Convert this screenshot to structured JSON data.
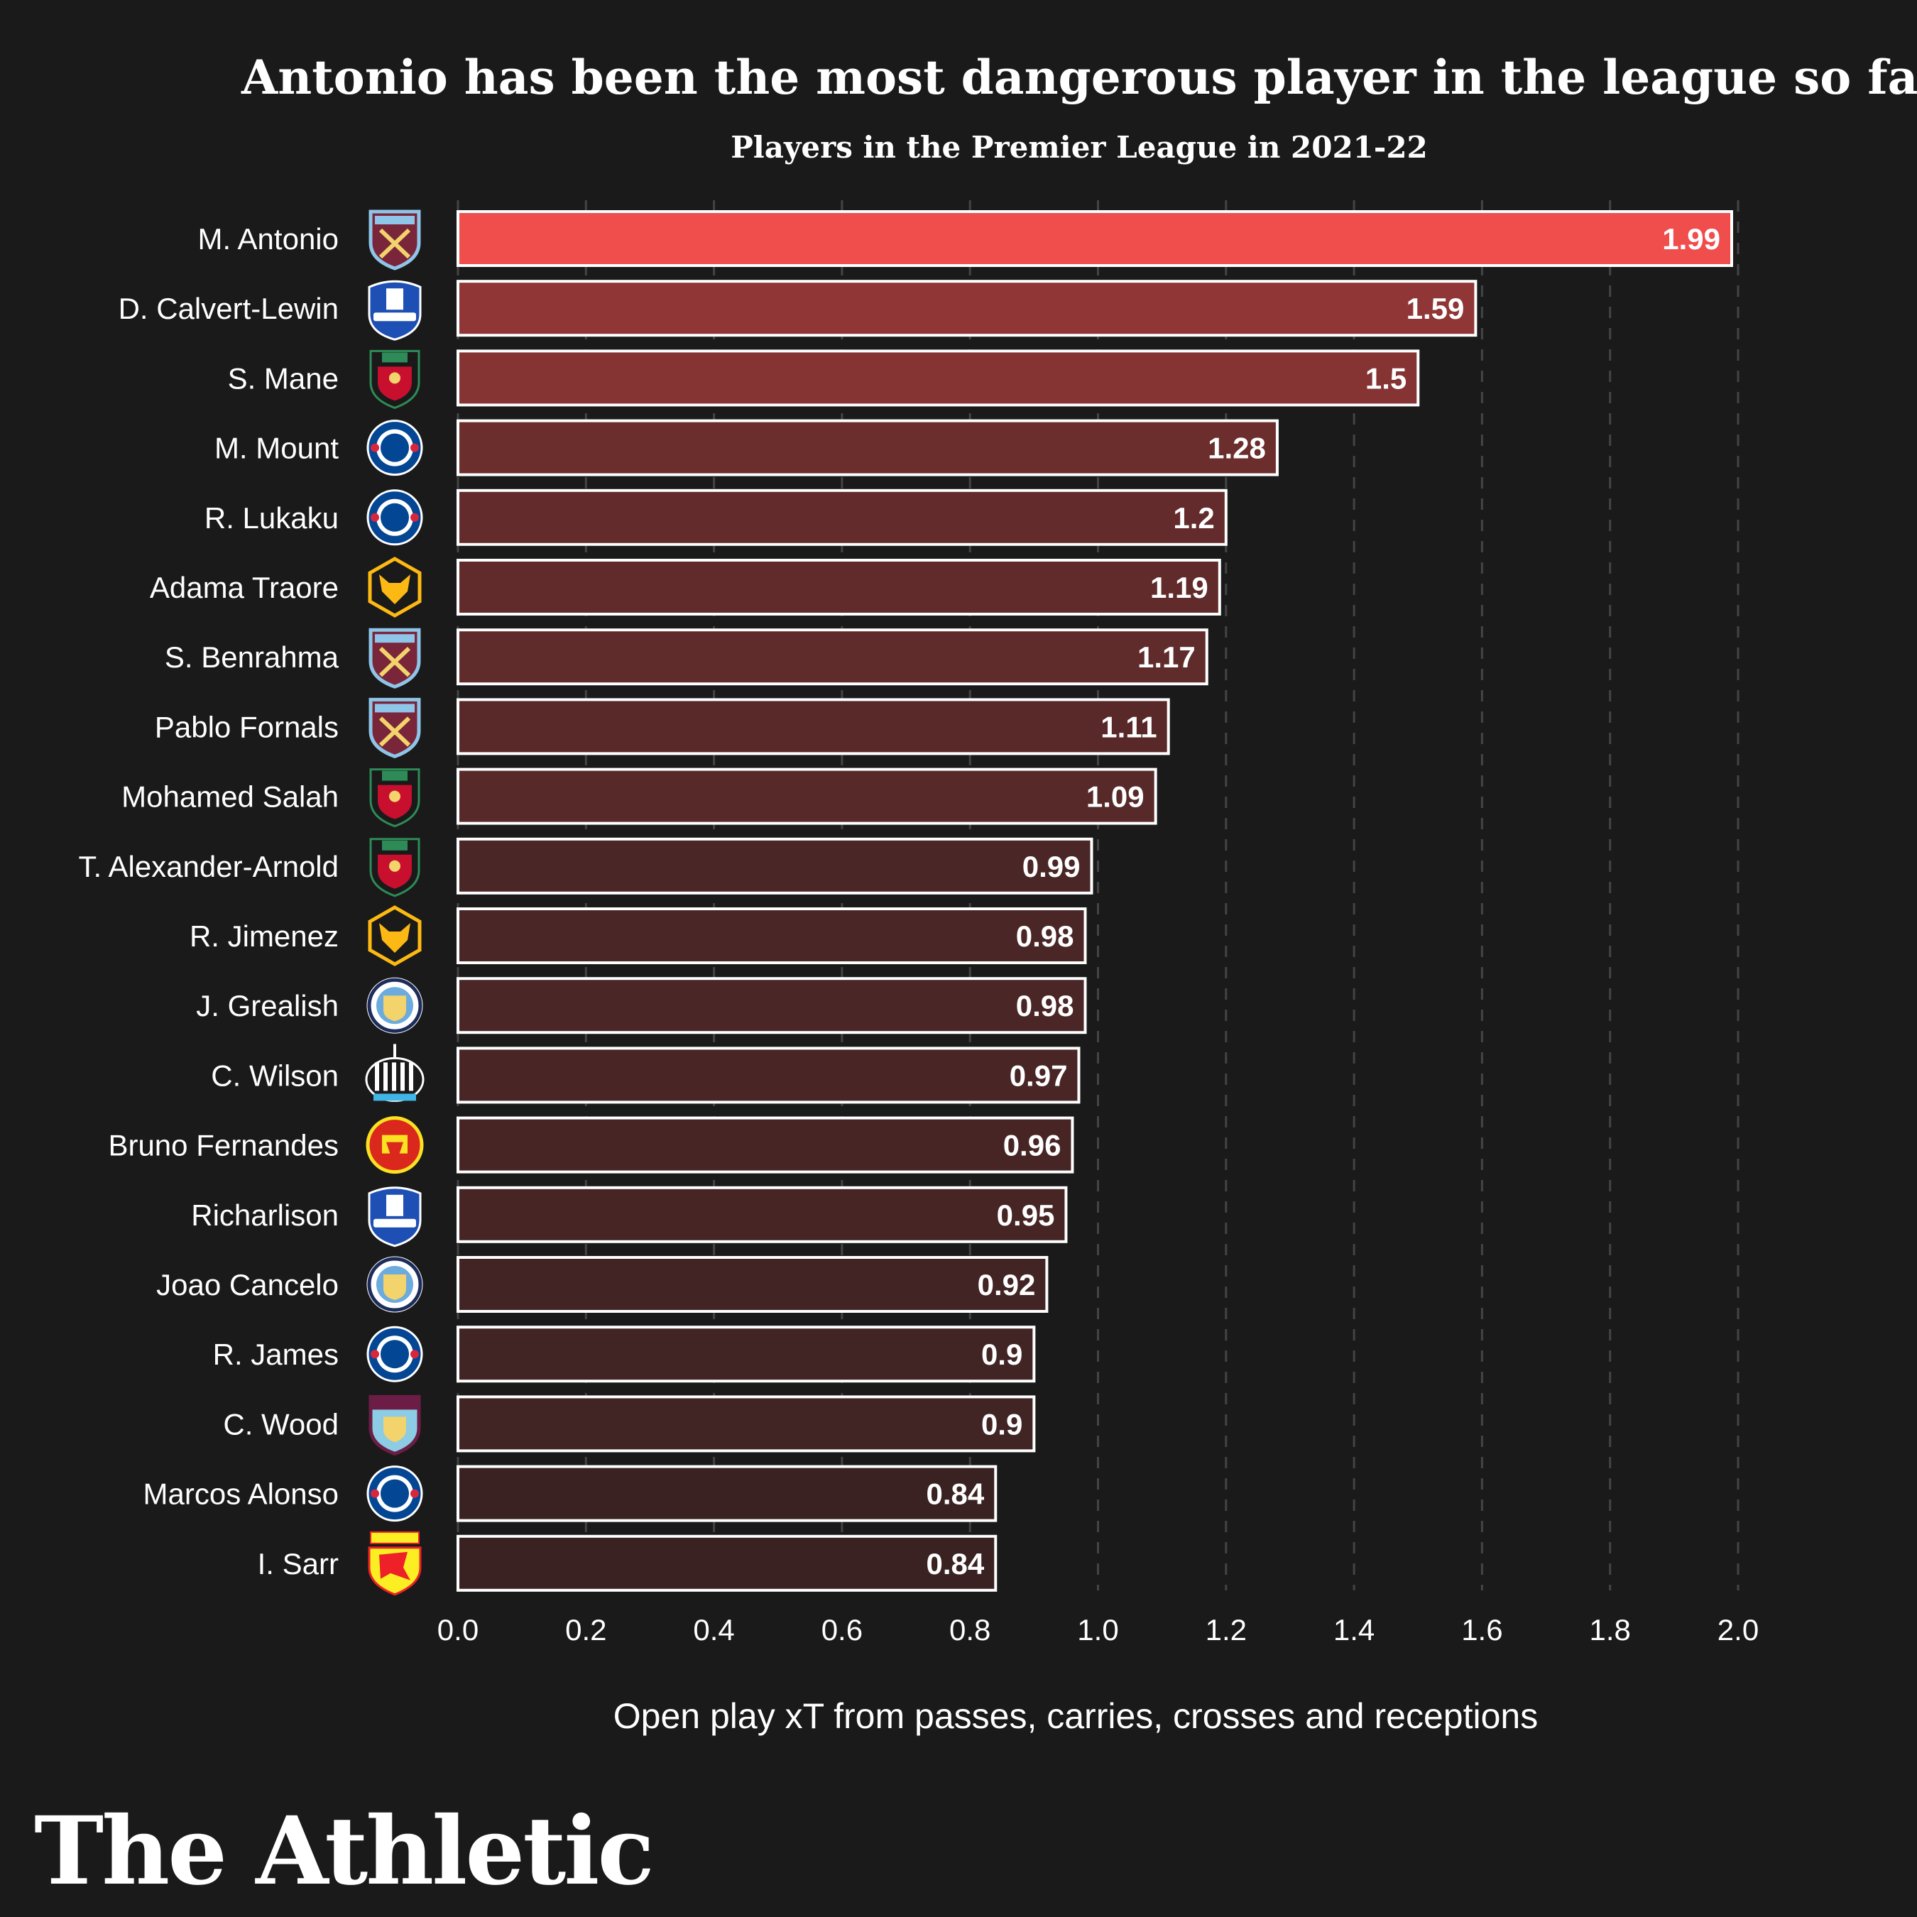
{
  "title": "Antonio has been the most dangerous player in the league so far",
  "subtitle": "Players in the Premier League in 2021-22",
  "brand": "The Athletic",
  "colors": {
    "background": "#1a1a1a",
    "highlight_bar": "#f04d4d",
    "bar_high": "#a33a3a",
    "bar_low": "#3a2222",
    "bar_outline": "#ffffff",
    "gridline": "#444444"
  },
  "chart_data": {
    "type": "bar",
    "orientation": "horizontal",
    "xlabel": "Open play xT from passes, carries, crosses and receptions",
    "xlim": [
      0,
      2.0
    ],
    "xticks": [
      "0.0",
      "0.2",
      "0.4",
      "0.6",
      "0.8",
      "1.0",
      "1.2",
      "1.4",
      "1.6",
      "1.8",
      "2.0"
    ],
    "grid": "vertical dashed",
    "categories": [
      "M. Antonio",
      "D. Calvert-Lewin",
      "S. Mane",
      "M. Mount",
      "R. Lukaku",
      "Adama Traore",
      "S. Benrahma",
      "Pablo Fornals",
      "Mohamed Salah",
      "T. Alexander-Arnold",
      "R. Jimenez",
      "J. Grealish",
      "C. Wilson",
      "Bruno Fernandes",
      "Richarlison",
      "Joao Cancelo",
      "R. James",
      "C. Wood",
      "Marcos Alonso",
      "I. Sarr"
    ],
    "values": [
      1.99,
      1.59,
      1.5,
      1.28,
      1.2,
      1.19,
      1.17,
      1.11,
      1.09,
      0.99,
      0.98,
      0.98,
      0.97,
      0.96,
      0.95,
      0.92,
      0.9,
      0.9,
      0.84,
      0.84
    ],
    "value_labels": [
      "1.99",
      "1.59",
      "1.5",
      "1.28",
      "1.2",
      "1.19",
      "1.17",
      "1.11",
      "1.09",
      "0.99",
      "0.98",
      "0.98",
      "0.97",
      "0.96",
      "0.95",
      "0.92",
      "0.9",
      "0.9",
      "0.84",
      "0.84"
    ],
    "clubs": [
      "west-ham",
      "everton",
      "liverpool",
      "chelsea",
      "chelsea",
      "wolves",
      "west-ham",
      "west-ham",
      "liverpool",
      "liverpool",
      "wolves",
      "man-city",
      "newcastle",
      "man-united",
      "everton",
      "man-city",
      "chelsea",
      "burnley",
      "chelsea",
      "watford"
    ]
  }
}
